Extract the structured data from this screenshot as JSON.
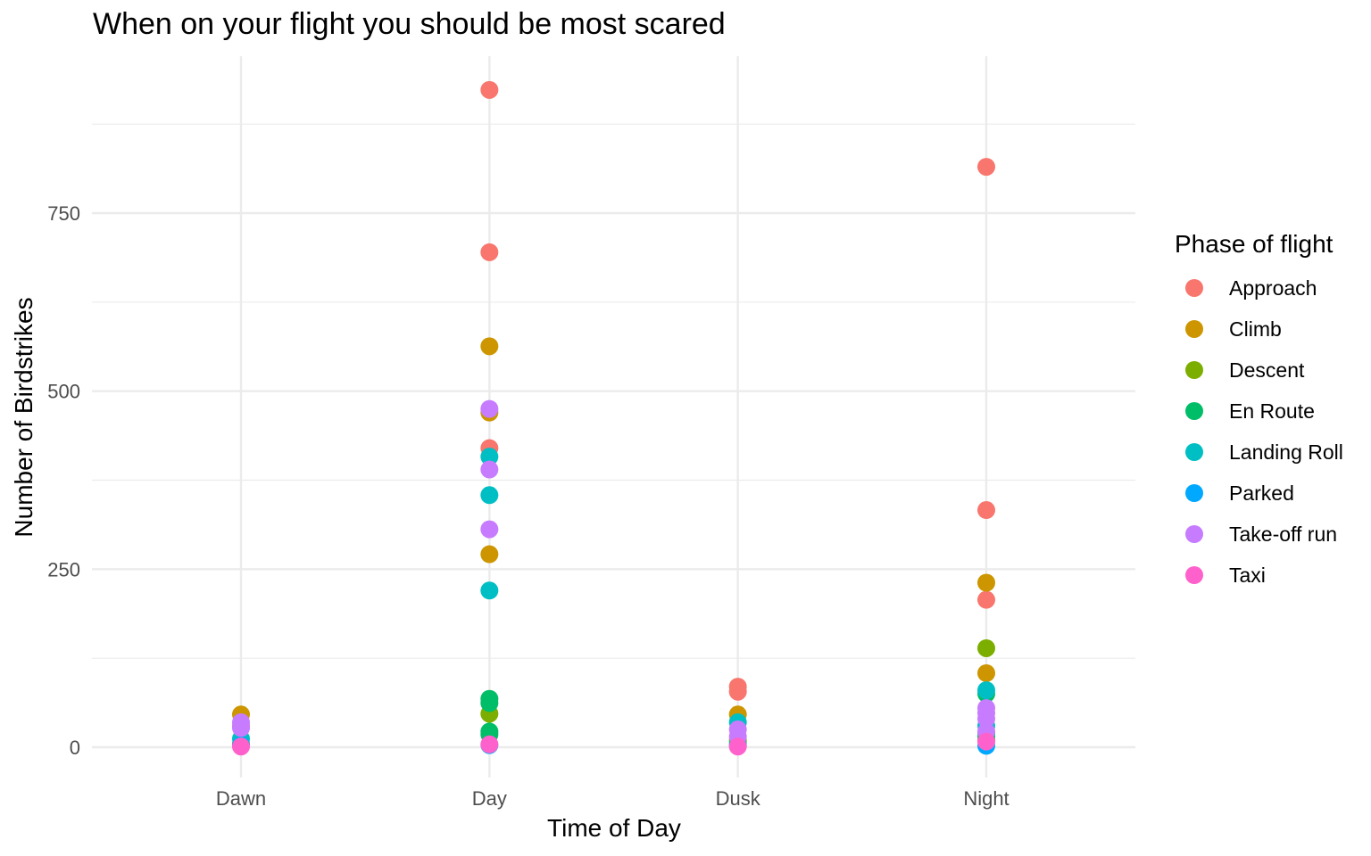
{
  "chart_data": {
    "type": "scatter",
    "title": "When on your flight you should be most scared",
    "xlabel": "Time of Day",
    "ylabel": "Number of Birdstrikes",
    "categories": [
      "Dawn",
      "Day",
      "Dusk",
      "Night"
    ],
    "ylim": [
      -45,
      970
    ],
    "yticks": [
      0,
      250,
      500,
      750
    ],
    "grid": true,
    "legend_title": "Phase of flight",
    "legend_position": "right",
    "series": [
      {
        "name": "Approach",
        "color": "#F8766D",
        "points": [
          [
            "Dawn",
            30
          ],
          [
            "Day",
            923
          ],
          [
            "Day",
            695
          ],
          [
            "Day",
            420
          ],
          [
            "Dusk",
            85
          ],
          [
            "Dusk",
            78
          ],
          [
            "Night",
            815
          ],
          [
            "Night",
            333
          ],
          [
            "Night",
            207
          ]
        ]
      },
      {
        "name": "Climb",
        "color": "#CD9600",
        "points": [
          [
            "Dawn",
            46
          ],
          [
            "Day",
            563
          ],
          [
            "Day",
            470
          ],
          [
            "Day",
            271
          ],
          [
            "Dusk",
            46
          ],
          [
            "Night",
            231
          ],
          [
            "Night",
            104
          ]
        ]
      },
      {
        "name": "Descent",
        "color": "#7CAE00",
        "points": [
          [
            "Dawn",
            5
          ],
          [
            "Day",
            47
          ],
          [
            "Dusk",
            10
          ],
          [
            "Night",
            139
          ],
          [
            "Night",
            10
          ]
        ]
      },
      {
        "name": "En Route",
        "color": "#00BE67",
        "points": [
          [
            "Dawn",
            2
          ],
          [
            "Day",
            68
          ],
          [
            "Day",
            62
          ],
          [
            "Day",
            22
          ],
          [
            "Day",
            18
          ],
          [
            "Dusk",
            5
          ],
          [
            "Night",
            75
          ],
          [
            "Night",
            20
          ],
          [
            "Night",
            15
          ]
        ]
      },
      {
        "name": "Landing Roll",
        "color": "#00BFC4",
        "points": [
          [
            "Dawn",
            12
          ],
          [
            "Day",
            408
          ],
          [
            "Day",
            354
          ],
          [
            "Day",
            220
          ],
          [
            "Dusk",
            35
          ],
          [
            "Night",
            80
          ],
          [
            "Night",
            30
          ]
        ]
      },
      {
        "name": "Parked",
        "color": "#00A9FF",
        "points": [
          [
            "Dawn",
            3
          ],
          [
            "Day",
            3
          ],
          [
            "Dusk",
            2
          ],
          [
            "Night",
            2
          ]
        ]
      },
      {
        "name": "Take-off run",
        "color": "#C77CFF",
        "points": [
          [
            "Dawn",
            35
          ],
          [
            "Dawn",
            27
          ],
          [
            "Day",
            475
          ],
          [
            "Day",
            390
          ],
          [
            "Day",
            306
          ],
          [
            "Dusk",
            25
          ],
          [
            "Dusk",
            15
          ],
          [
            "Night",
            55
          ],
          [
            "Night",
            48
          ],
          [
            "Night",
            40
          ],
          [
            "Night",
            22
          ]
        ]
      },
      {
        "name": "Taxi",
        "color": "#FF61CC",
        "points": [
          [
            "Dawn",
            1
          ],
          [
            "Day",
            4
          ],
          [
            "Dusk",
            1
          ],
          [
            "Night",
            8
          ]
        ]
      }
    ]
  }
}
